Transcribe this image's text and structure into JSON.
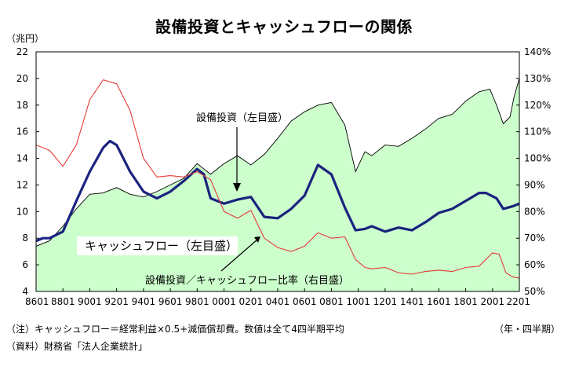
{
  "chart_data": {
    "type": "area",
    "title": "設備投資とキャッシュフローの関係",
    "left_axis_label": "（兆円）",
    "period_label": "（年・四半期）",
    "x_tick_labels": [
      "8601",
      "8801",
      "9001",
      "9201",
      "9401",
      "9601",
      "9801",
      "0001",
      "0201",
      "0401",
      "0601",
      "0801",
      "1001",
      "1201",
      "1401",
      "1601",
      "1801",
      "2001",
      "2201"
    ],
    "x_range": [
      1986.0,
      2022.0
    ],
    "y_left": {
      "range": [
        4,
        22
      ],
      "ticks": [
        4,
        6,
        8,
        10,
        12,
        14,
        16,
        18,
        20,
        22
      ]
    },
    "y_right": {
      "range": [
        50,
        140
      ],
      "ticks": [
        "50%",
        "60%",
        "70%",
        "80%",
        "90%",
        "100%",
        "110%",
        "120%",
        "130%",
        "140%"
      ]
    },
    "grid": false,
    "series": [
      {
        "name": "キャッシュフロー（左目盛）",
        "type": "area",
        "axis": "left",
        "color": "#ccffcc",
        "stroke": "#000000",
        "points": [
          [
            1986.0,
            7.4
          ],
          [
            1987.0,
            7.8
          ],
          [
            1988.0,
            8.9
          ],
          [
            1989.0,
            10.2
          ],
          [
            1990.0,
            11.3
          ],
          [
            1991.0,
            11.4
          ],
          [
            1992.0,
            11.8
          ],
          [
            1993.0,
            11.3
          ],
          [
            1994.0,
            11.1
          ],
          [
            1995.0,
            11.5
          ],
          [
            1996.0,
            12.0
          ],
          [
            1997.0,
            12.5
          ],
          [
            1998.0,
            13.6
          ],
          [
            1999.0,
            12.8
          ],
          [
            2000.0,
            13.6
          ],
          [
            2001.0,
            14.2
          ],
          [
            2002.0,
            13.5
          ],
          [
            2003.0,
            14.3
          ],
          [
            2004.0,
            15.5
          ],
          [
            2005.0,
            16.8
          ],
          [
            2006.0,
            17.5
          ],
          [
            2007.0,
            18.0
          ],
          [
            2008.0,
            18.2
          ],
          [
            2009.0,
            16.5
          ],
          [
            2009.8,
            13.0
          ],
          [
            2010.5,
            14.5
          ],
          [
            2011.0,
            14.2
          ],
          [
            2012.0,
            15.0
          ],
          [
            2013.0,
            14.9
          ],
          [
            2014.0,
            15.5
          ],
          [
            2015.0,
            16.2
          ],
          [
            2016.0,
            17.0
          ],
          [
            2017.0,
            17.3
          ],
          [
            2018.0,
            18.3
          ],
          [
            2019.0,
            19.0
          ],
          [
            2019.8,
            19.2
          ],
          [
            2020.3,
            18.0
          ],
          [
            2020.8,
            16.6
          ],
          [
            2021.3,
            17.1
          ],
          [
            2021.6,
            18.6
          ],
          [
            2022.0,
            20.0
          ]
        ]
      },
      {
        "name": "設備投資（左目盛）",
        "type": "line",
        "axis": "left",
        "color": "#1a237e",
        "points": [
          [
            1986.0,
            7.8
          ],
          [
            1986.5,
            8.0
          ],
          [
            1987.0,
            8.0
          ],
          [
            1988.0,
            8.5
          ],
          [
            1989.0,
            10.8
          ],
          [
            1990.0,
            13.0
          ],
          [
            1991.0,
            14.8
          ],
          [
            1991.5,
            15.3
          ],
          [
            1992.0,
            15.0
          ],
          [
            1993.0,
            13.0
          ],
          [
            1994.0,
            11.5
          ],
          [
            1995.0,
            11.0
          ],
          [
            1996.0,
            11.5
          ],
          [
            1997.0,
            12.3
          ],
          [
            1998.0,
            13.2
          ],
          [
            1998.5,
            12.8
          ],
          [
            1999.0,
            11.0
          ],
          [
            2000.0,
            10.6
          ],
          [
            2001.0,
            10.9
          ],
          [
            2002.0,
            11.1
          ],
          [
            2003.0,
            9.6
          ],
          [
            2004.0,
            9.5
          ],
          [
            2005.0,
            10.2
          ],
          [
            2006.0,
            11.2
          ],
          [
            2007.0,
            13.5
          ],
          [
            2008.0,
            12.8
          ],
          [
            2009.0,
            10.3
          ],
          [
            2009.8,
            8.6
          ],
          [
            2010.5,
            8.7
          ],
          [
            2011.0,
            8.9
          ],
          [
            2012.0,
            8.5
          ],
          [
            2013.0,
            8.8
          ],
          [
            2014.0,
            8.6
          ],
          [
            2015.0,
            9.2
          ],
          [
            2016.0,
            9.9
          ],
          [
            2017.0,
            10.2
          ],
          [
            2018.0,
            10.8
          ],
          [
            2019.0,
            11.4
          ],
          [
            2019.5,
            11.4
          ],
          [
            2020.3,
            11.0
          ],
          [
            2020.8,
            10.2
          ],
          [
            2021.5,
            10.4
          ],
          [
            2022.0,
            10.6
          ]
        ]
      },
      {
        "name": "設備投資／キャッシュフロー比率（右目盛）",
        "type": "line",
        "axis": "right",
        "color": "#e53935",
        "points": [
          [
            1986.0,
            105.0
          ],
          [
            1987.0,
            103.0
          ],
          [
            1988.0,
            97.0
          ],
          [
            1989.0,
            105.0
          ],
          [
            1990.0,
            122.0
          ],
          [
            1991.0,
            129.5
          ],
          [
            1992.0,
            128.0
          ],
          [
            1993.0,
            118.0
          ],
          [
            1994.0,
            100.0
          ],
          [
            1995.0,
            93.0
          ],
          [
            1996.0,
            93.5
          ],
          [
            1997.0,
            93.0
          ],
          [
            1998.0,
            95.0
          ],
          [
            1999.0,
            92.0
          ],
          [
            2000.0,
            80.0
          ],
          [
            2001.0,
            77.5
          ],
          [
            2002.0,
            80.5
          ],
          [
            2003.0,
            70.0
          ],
          [
            2004.0,
            66.5
          ],
          [
            2005.0,
            65.0
          ],
          [
            2006.0,
            67.0
          ],
          [
            2007.0,
            72.0
          ],
          [
            2008.0,
            70.0
          ],
          [
            2009.0,
            70.5
          ],
          [
            2009.8,
            62.0
          ],
          [
            2010.5,
            59.0
          ],
          [
            2011.0,
            58.5
          ],
          [
            2012.0,
            59.0
          ],
          [
            2013.0,
            57.0
          ],
          [
            2014.0,
            56.5
          ],
          [
            2015.0,
            57.5
          ],
          [
            2016.0,
            58.0
          ],
          [
            2017.0,
            57.5
          ],
          [
            2018.0,
            59.0
          ],
          [
            2019.0,
            59.5
          ],
          [
            2020.0,
            64.5
          ],
          [
            2020.5,
            64.0
          ],
          [
            2021.0,
            57.0
          ],
          [
            2021.5,
            55.5
          ],
          [
            2022.0,
            55.0
          ]
        ]
      }
    ]
  },
  "labels": {
    "cashflow": "キャッシュフロー（左目盛）",
    "investment": "設備投資（左目盛）",
    "ratio": "設備投資／キャッシュフロー比率（右目盛）"
  },
  "notes": {
    "note1": "（注）キャッシュフロー＝経常利益×0.5+減価償却費。数値は全て4四半期平均",
    "source": "（資料）財務省「法人企業統計」"
  }
}
